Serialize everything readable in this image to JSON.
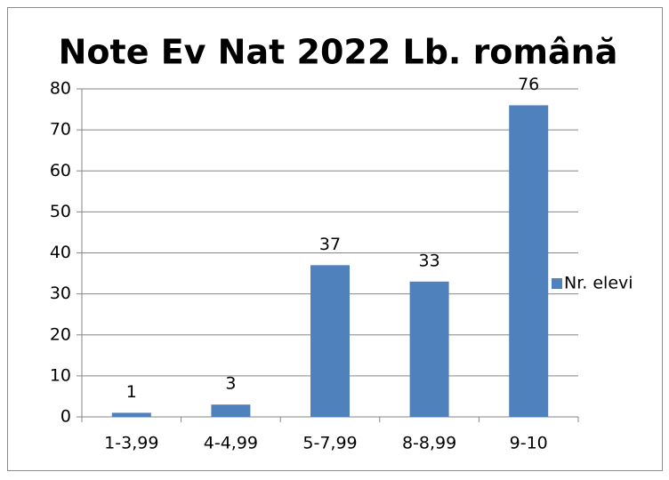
{
  "chart_data": {
    "type": "bar",
    "title": "Note Ev Nat 2022 Lb. română",
    "categories": [
      "1-3,99",
      "4-4,99",
      "5-7,99",
      "8-8,99",
      "9-10"
    ],
    "series": [
      {
        "name": "Nr. elevi",
        "color": "#4f81bd",
        "values": [
          1,
          3,
          37,
          33,
          76
        ]
      }
    ],
    "ylim": [
      0,
      80
    ],
    "yticks": [
      0,
      10,
      20,
      30,
      40,
      50,
      60,
      70,
      80
    ],
    "grid": true,
    "legend": "right"
  }
}
